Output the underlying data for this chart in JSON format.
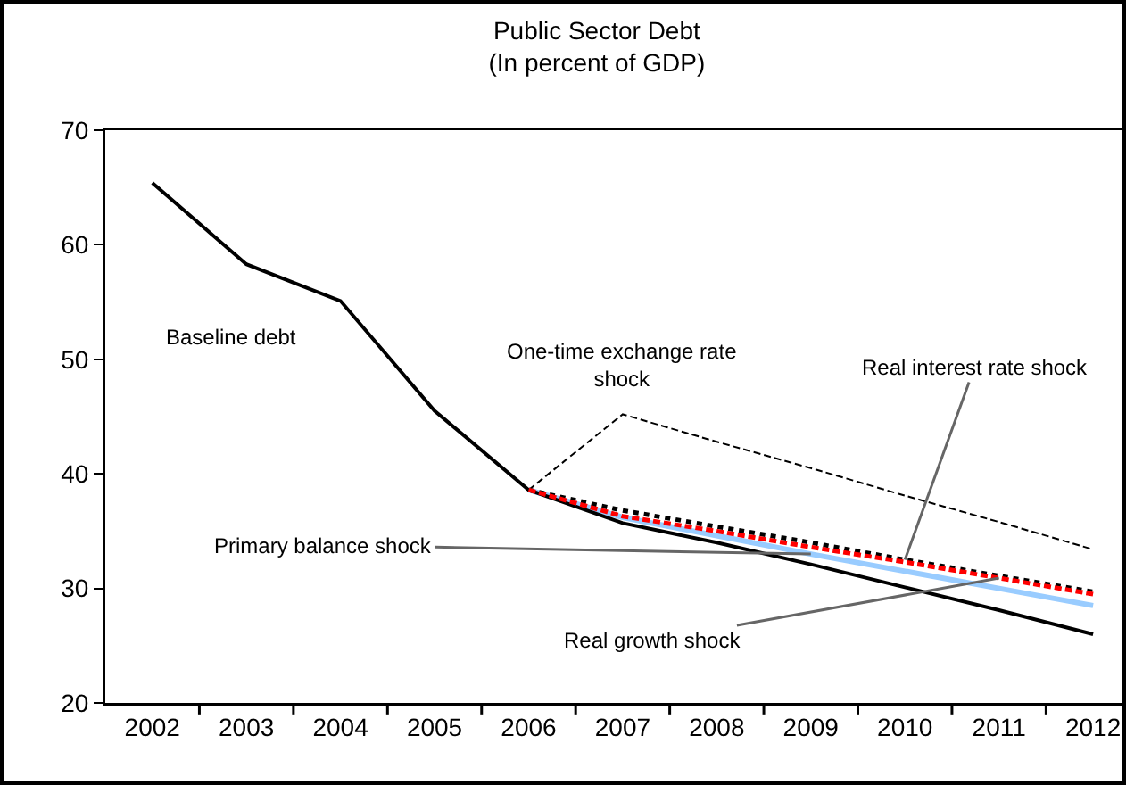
{
  "chart_data": {
    "type": "line",
    "title": "Public Sector Debt",
    "subtitle": "(In percent of GDP)",
    "categories": [
      "2002",
      "2003",
      "2004",
      "2005",
      "2006",
      "2007",
      "2008",
      "2009",
      "2010",
      "2011",
      "2012"
    ],
    "series": [
      {
        "name": "Baseline debt",
        "color": "#000000",
        "line_style": "solid",
        "values": [
          65.4,
          58.3,
          55.1,
          45.5,
          38.6,
          35.7,
          34.0,
          32.1,
          30.1,
          28.1,
          26.0
        ]
      },
      {
        "name": "One-time exchange rate shock",
        "color": "#000000",
        "line_style": "dashed",
        "values": [
          null,
          null,
          null,
          null,
          38.6,
          45.2,
          42.8,
          40.5,
          38.1,
          35.8,
          33.4
        ]
      },
      {
        "name": "Real interest rate shock",
        "color": "#000000",
        "line_style": "dotted",
        "values": [
          null,
          null,
          null,
          null,
          38.6,
          36.8,
          35.4,
          34.0,
          32.5,
          31.1,
          29.7
        ]
      },
      {
        "name": "Real growth shock",
        "color": "#ff0000",
        "line_style": "dashed",
        "values": [
          null,
          null,
          null,
          null,
          38.6,
          36.3,
          35.0,
          33.6,
          32.3,
          30.9,
          29.5
        ]
      },
      {
        "name": "Primary balance shock",
        "color": "#99ccff",
        "line_style": "solid",
        "values": [
          null,
          null,
          null,
          null,
          38.6,
          36.2,
          34.6,
          33.0,
          31.5,
          30.0,
          28.5
        ]
      }
    ],
    "ylim": [
      20,
      70
    ],
    "yticks": [
      20,
      30,
      40,
      50,
      60,
      70
    ],
    "grid": false,
    "legend": false,
    "marker": "none"
  }
}
